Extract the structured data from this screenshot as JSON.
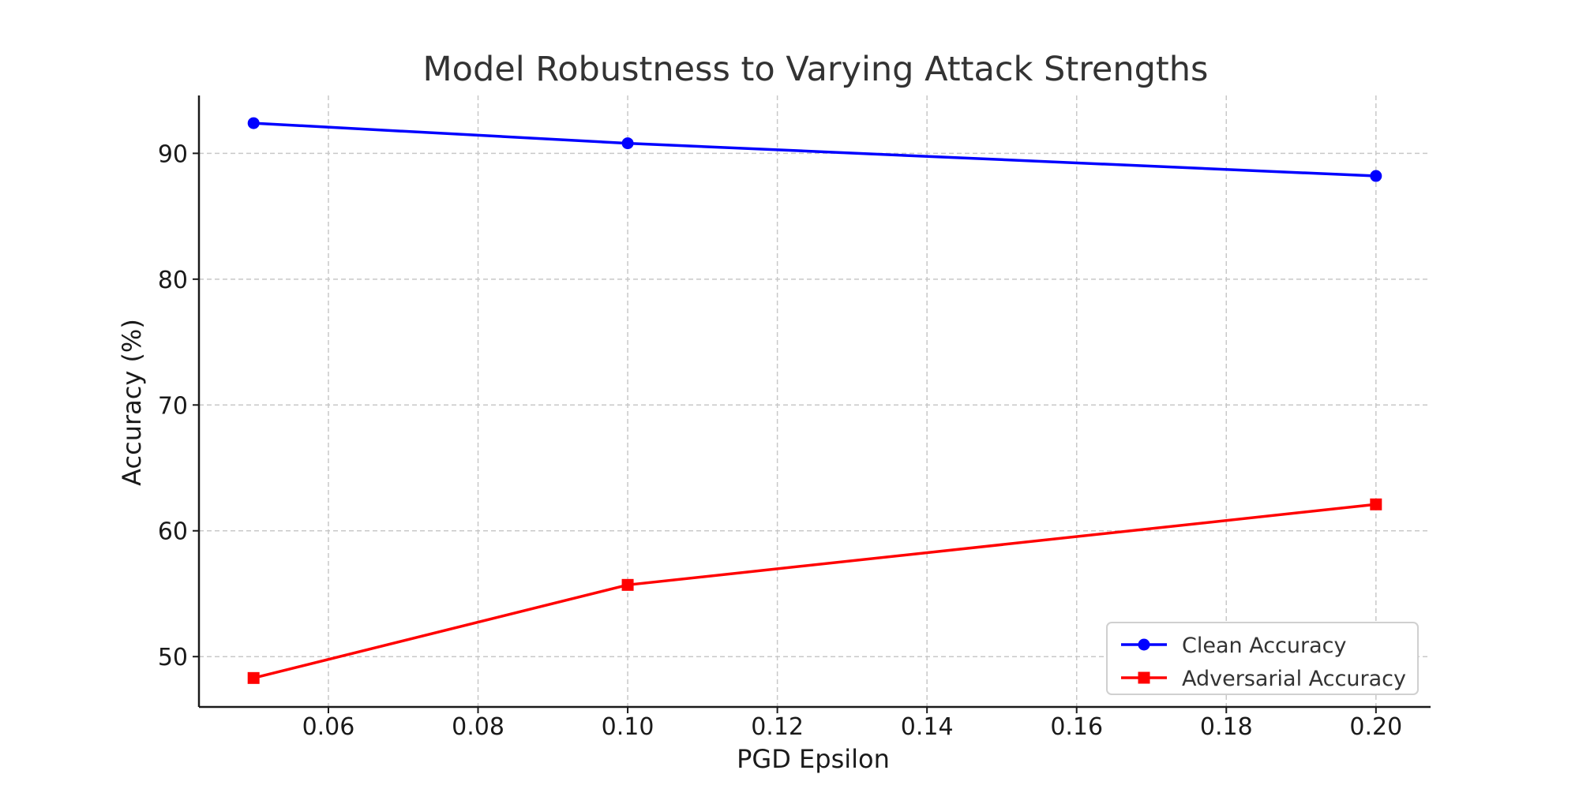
{
  "chart_data": {
    "type": "line",
    "title": "Model Robustness to Varying Attack Strengths",
    "xlabel": "PGD Epsilon",
    "ylabel": "Accuracy (%)",
    "xlim": [
      0.0427,
      0.2073
    ],
    "ylim": [
      46,
      94.6
    ],
    "xticks": [
      0.06,
      0.08,
      0.1,
      0.12,
      0.14,
      0.16,
      0.18,
      0.2
    ],
    "xtick_labels": [
      "0.06",
      "0.08",
      "0.10",
      "0.12",
      "0.14",
      "0.16",
      "0.18",
      "0.20"
    ],
    "yticks": [
      50,
      60,
      70,
      80,
      90
    ],
    "ytick_labels": [
      "50",
      "60",
      "70",
      "80",
      "90"
    ],
    "grid": true,
    "legend_position": "bottom-right",
    "x": [
      0.05,
      0.1,
      0.2
    ],
    "series": [
      {
        "name": "Clean Accuracy",
        "values": [
          92.4,
          90.8,
          88.2
        ],
        "color": "#0000ff",
        "marker": "circle"
      },
      {
        "name": "Adversarial Accuracy",
        "values": [
          48.3,
          55.7,
          62.1
        ],
        "color": "#ff0000",
        "marker": "square"
      }
    ]
  }
}
